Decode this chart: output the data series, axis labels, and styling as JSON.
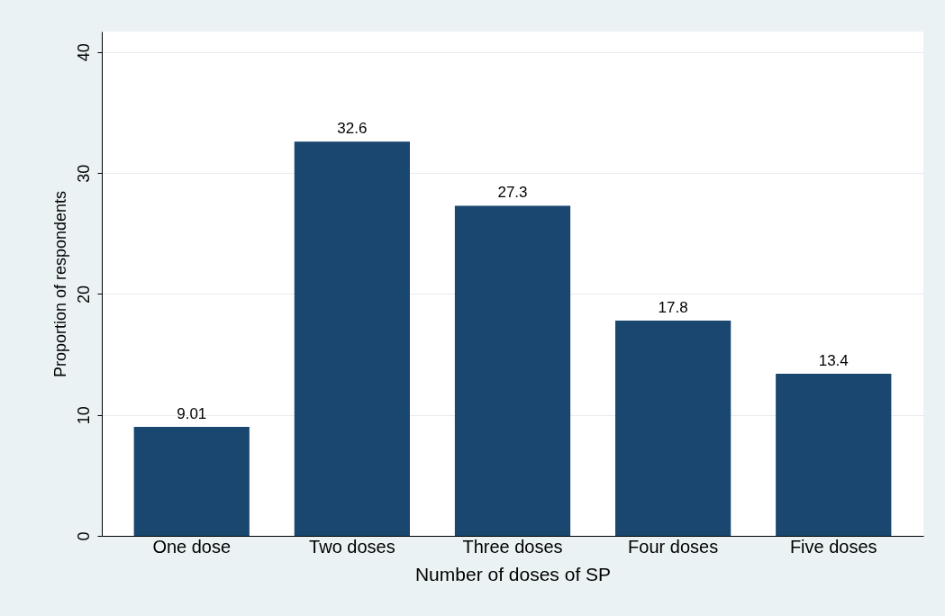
{
  "chart_data": {
    "type": "bar",
    "xlabel": "Number of doses of SP",
    "ylabel": "Proportion of respondents",
    "categories": [
      "One dose",
      "Two doses",
      "Three doses",
      "Four doses",
      "Five doses"
    ],
    "values": [
      9.01,
      32.6,
      27.3,
      17.8,
      13.4
    ],
    "color": "#1a476f",
    "ylim": [
      0,
      41.7
    ],
    "yticks": [
      0,
      10,
      20,
      30,
      40
    ],
    "grid": "y",
    "data_labels": true
  }
}
